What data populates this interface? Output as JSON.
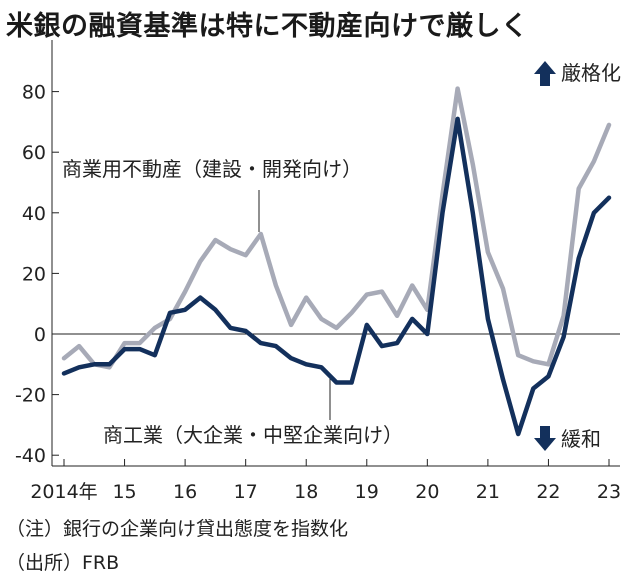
{
  "title": "米銀の融資基準は特に不動産向けで厳しく",
  "notes": [
    "（注）銀行の企業向け貸出態度を指数化",
    "（出所）FRB"
  ],
  "colors": {
    "dark": "#13305c",
    "light": "#a7aab7",
    "axis": "#222222"
  },
  "chart_data": {
    "type": "line",
    "title": "米銀の融資基準は特に不動産向けで厳しく",
    "xlabel": "",
    "ylabel": "",
    "ylim": [
      -45,
      90
    ],
    "xlim": [
      2014.0,
      2023.2
    ],
    "y_ticks": [
      80,
      60,
      40,
      20,
      0,
      -20,
      -40
    ],
    "x_ticks": [
      {
        "value": 2014,
        "label": "2014年"
      },
      {
        "value": 2015,
        "label": "15"
      },
      {
        "value": 2016,
        "label": "16"
      },
      {
        "value": 2017,
        "label": "17"
      },
      {
        "value": 2018,
        "label": "18"
      },
      {
        "value": 2019,
        "label": "19"
      },
      {
        "value": 2020,
        "label": "20"
      },
      {
        "value": 2021,
        "label": "21"
      },
      {
        "value": 2022,
        "label": "22"
      },
      {
        "value": 2023,
        "label": "23"
      }
    ],
    "annotations": {
      "up": "厳格化",
      "down": "緩和"
    },
    "series": [
      {
        "name": "商業用不動産（建設・開発向け）",
        "color": "#a7aab7",
        "x": [
          2014.0,
          2014.25,
          2014.5,
          2014.75,
          2015.0,
          2015.25,
          2015.5,
          2015.75,
          2016.0,
          2016.25,
          2016.5,
          2016.75,
          2017.0,
          2017.25,
          2017.5,
          2017.75,
          2018.0,
          2018.25,
          2018.5,
          2018.75,
          2019.0,
          2019.25,
          2019.5,
          2019.75,
          2020.0,
          2020.25,
          2020.5,
          2020.75,
          2021.0,
          2021.25,
          2021.5,
          2021.75,
          2022.0,
          2022.25,
          2022.5,
          2022.75,
          2023.0
        ],
        "values": [
          -8,
          -4,
          -10,
          -11,
          -3,
          -3,
          2,
          5,
          14,
          24,
          31,
          28,
          26,
          33,
          16,
          3,
          12,
          5,
          2,
          7,
          13,
          14,
          6,
          16,
          8,
          46,
          81,
          56,
          27,
          15,
          -7,
          -9,
          -10,
          6,
          48,
          57,
          69
        ]
      },
      {
        "name": "商工業（大企業・中堅企業向け）",
        "color": "#13305c",
        "x": [
          2014.0,
          2014.25,
          2014.5,
          2014.75,
          2015.0,
          2015.25,
          2015.5,
          2015.75,
          2016.0,
          2016.25,
          2016.5,
          2016.75,
          2017.0,
          2017.25,
          2017.5,
          2017.75,
          2018.0,
          2018.25,
          2018.5,
          2018.75,
          2019.0,
          2019.25,
          2019.5,
          2019.75,
          2020.0,
          2020.25,
          2020.5,
          2020.75,
          2021.0,
          2021.25,
          2021.5,
          2021.75,
          2022.0,
          2022.25,
          2022.5,
          2022.75,
          2023.0
        ],
        "values": [
          -13,
          -11,
          -10,
          -10,
          -5,
          -5,
          -7,
          7,
          8,
          12,
          8,
          2,
          1,
          -3,
          -4,
          -8,
          -10,
          -11,
          -16,
          -16,
          3,
          -4,
          -3,
          5,
          0,
          40,
          71,
          40,
          5,
          -15,
          -33,
          -18,
          -14,
          -1,
          25,
          40,
          45
        ]
      }
    ]
  }
}
